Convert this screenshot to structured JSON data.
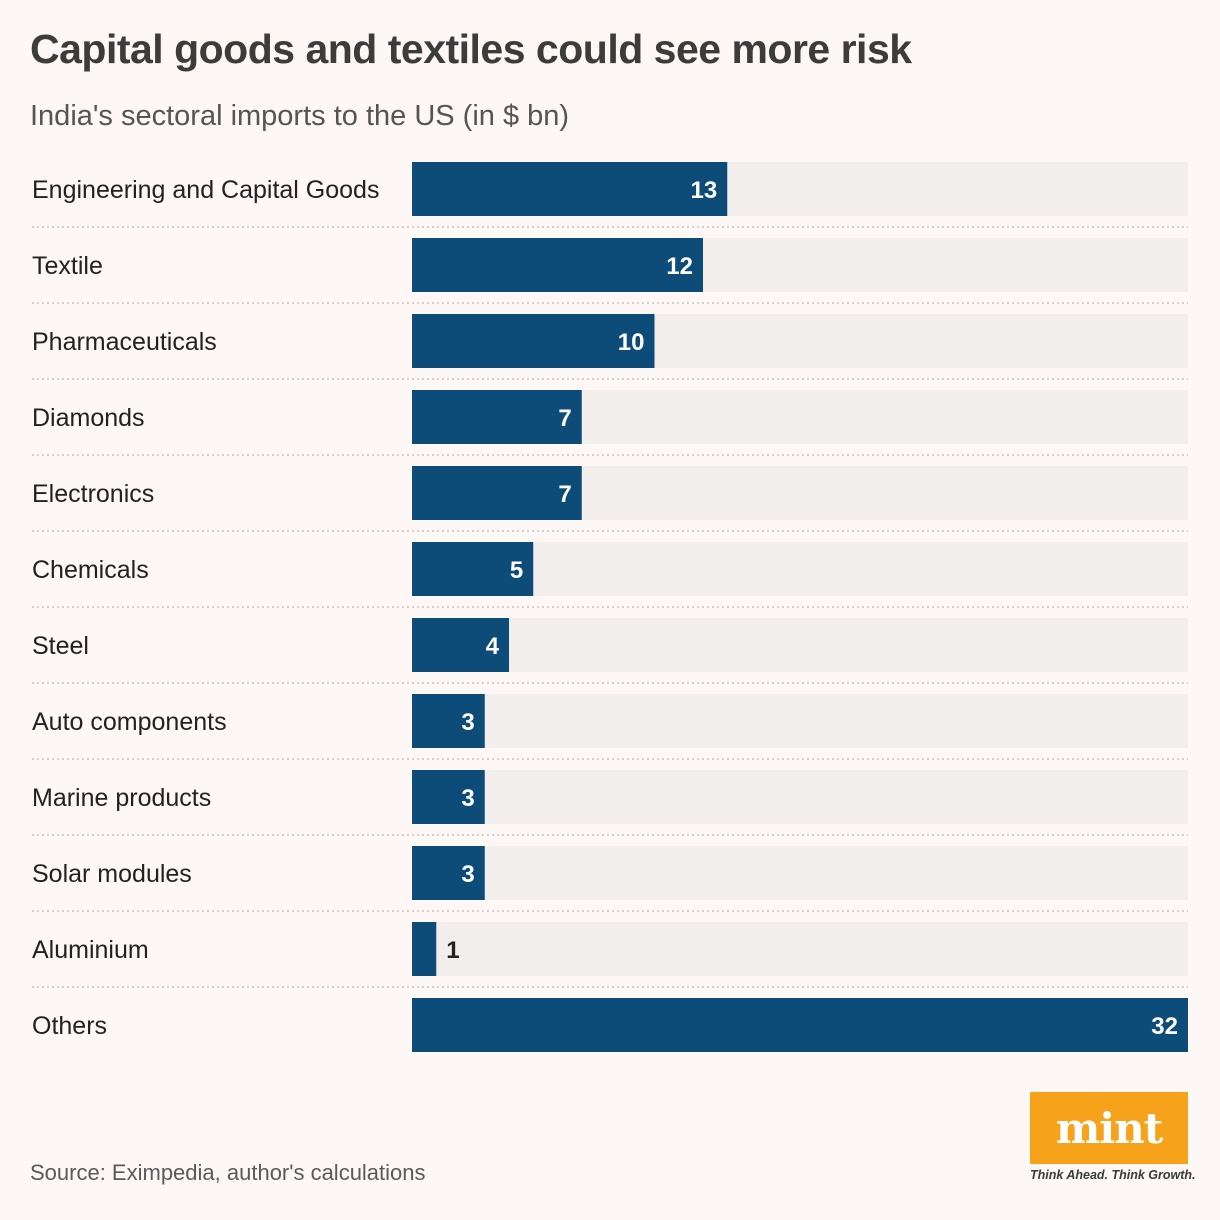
{
  "header": {
    "title": "Capital goods and textiles could see more risk",
    "subtitle": "India's sectoral imports to the US (in $ bn)"
  },
  "colors": {
    "bar": "#0d4b79",
    "track": "#f2eeec",
    "divider": "#c9c4c2",
    "label": "#222222",
    "value_inside": "#ffffff",
    "value_outside": "#222222",
    "logo_bg": "#f7a21b"
  },
  "chart_data": {
    "type": "bar",
    "orientation": "horizontal",
    "title": "Capital goods and textiles could see more risk",
    "subtitle": "India's sectoral imports to the US (in $ bn)",
    "xlabel": "",
    "ylabel": "",
    "xlim": [
      0,
      32
    ],
    "grid": false,
    "categories": [
      "Engineering and Capital Goods",
      "Textile",
      "Pharmaceuticals",
      "Diamonds",
      "Electronics",
      "Chemicals",
      "Steel",
      "Auto components",
      "Marine products",
      "Solar modules",
      "Aluminium",
      "Others"
    ],
    "values": [
      13,
      12,
      10,
      7,
      7,
      5,
      4,
      3,
      3,
      3,
      1,
      32
    ],
    "value_labels": [
      "13",
      "12",
      "10",
      "7",
      "7",
      "5",
      "4",
      "3",
      "3",
      "3",
      "1",
      "32"
    ]
  },
  "footer": {
    "source": "Source: Eximpedia, author's calculations",
    "logo_text": "mint",
    "tagline": "Think Ahead. Think Growth."
  }
}
